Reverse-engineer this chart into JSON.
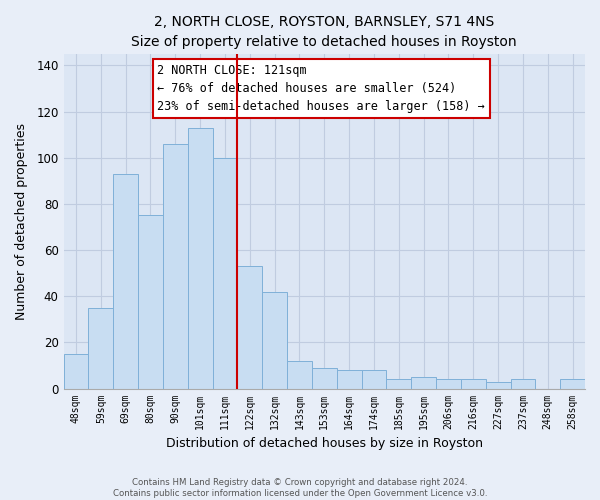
{
  "title": "2, NORTH CLOSE, ROYSTON, BARNSLEY, S71 4NS",
  "subtitle": "Size of property relative to detached houses in Royston",
  "xlabel": "Distribution of detached houses by size in Royston",
  "ylabel": "Number of detached properties",
  "bar_labels": [
    "48sqm",
    "59sqm",
    "69sqm",
    "80sqm",
    "90sqm",
    "101sqm",
    "111sqm",
    "122sqm",
    "132sqm",
    "143sqm",
    "153sqm",
    "164sqm",
    "174sqm",
    "185sqm",
    "195sqm",
    "206sqm",
    "216sqm",
    "227sqm",
    "237sqm",
    "248sqm",
    "258sqm"
  ],
  "bar_values": [
    15,
    35,
    93,
    75,
    106,
    113,
    100,
    53,
    42,
    12,
    9,
    8,
    8,
    4,
    5,
    4,
    4,
    3,
    4,
    0,
    4
  ],
  "bar_color": "#c8ddf2",
  "bar_edge_color": "#7fb0d8",
  "vline_color": "#cc0000",
  "vline_x": 6.5,
  "annotation_title": "2 NORTH CLOSE: 121sqm",
  "annotation_line1": "← 76% of detached houses are smaller (524)",
  "annotation_line2": "23% of semi-detached houses are larger (158) →",
  "annotation_box_color": "#ffffff",
  "annotation_box_edge": "#cc0000",
  "ylim": [
    0,
    145
  ],
  "yticks": [
    0,
    20,
    40,
    60,
    80,
    100,
    120,
    140
  ],
  "footer_line1": "Contains HM Land Registry data © Crown copyright and database right 2024.",
  "footer_line2": "Contains public sector information licensed under the Open Government Licence v3.0.",
  "bg_color": "#e8eef8",
  "plot_bg_color": "#dce6f4",
  "grid_color": "#c0cce0"
}
